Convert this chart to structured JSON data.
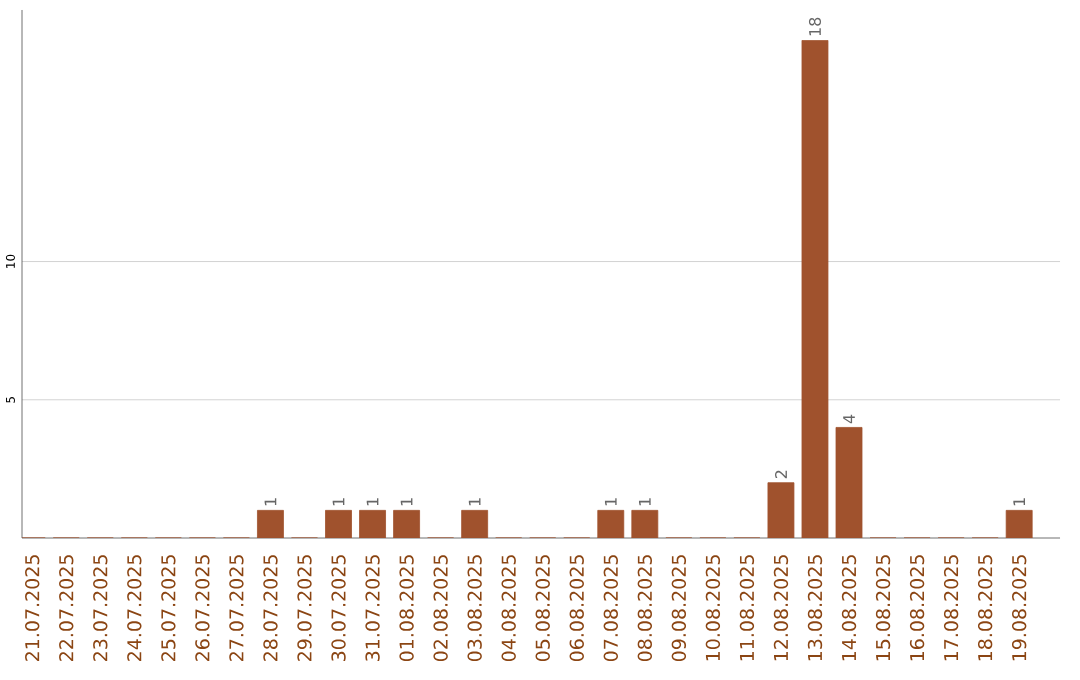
{
  "chart_data": {
    "type": "bar",
    "categories": [
      "21.07.2025",
      "22.07.2025",
      "23.07.2025",
      "24.07.2025",
      "25.07.2025",
      "26.07.2025",
      "27.07.2025",
      "28.07.2025",
      "29.07.2025",
      "30.07.2025",
      "31.07.2025",
      "01.08.2025",
      "02.08.2025",
      "03.08.2025",
      "04.08.2025",
      "05.08.2025",
      "06.08.2025",
      "07.08.2025",
      "08.08.2025",
      "09.08.2025",
      "10.08.2025",
      "11.08.2025",
      "12.08.2025",
      "13.08.2025",
      "14.08.2025",
      "15.08.2025",
      "16.08.2025",
      "17.08.2025",
      "18.08.2025",
      "19.08.2025"
    ],
    "values": [
      0,
      0,
      0,
      0,
      0,
      0,
      0,
      1,
      0,
      1,
      1,
      1,
      0,
      1,
      0,
      0,
      0,
      1,
      1,
      0,
      0,
      0,
      2,
      18,
      4,
      0,
      0,
      0,
      0,
      1
    ],
    "value_labels": [
      null,
      null,
      null,
      null,
      null,
      null,
      null,
      "1",
      null,
      "1",
      "1",
      "1",
      null,
      "1",
      null,
      null,
      null,
      "1",
      "1",
      null,
      null,
      null,
      "2",
      "18",
      "4",
      null,
      null,
      null,
      null,
      "1"
    ],
    "color": "#a0522d",
    "ylim": [
      0,
      19.1
    ],
    "yticks": [
      5,
      10
    ],
    "grid": "y"
  }
}
